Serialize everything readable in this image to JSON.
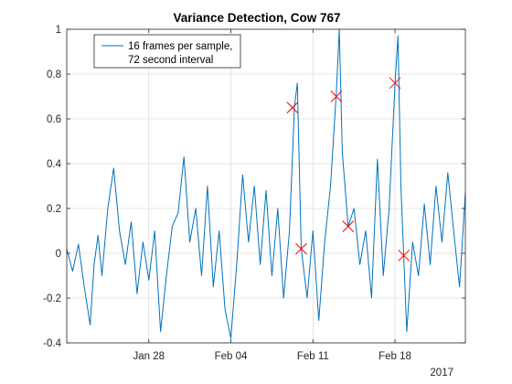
{
  "chart_data": {
    "type": "line",
    "title": "Variance Detection, Cow 767",
    "xlabel": "",
    "ylabel": "",
    "x_axis_type": "date",
    "xlim": [
      "2017-01-21",
      "2017-02-24"
    ],
    "ylim": [
      -0.4,
      1.0
    ],
    "x_ticks": [
      {
        "date": "2017-01-28",
        "label": "Jan 28"
      },
      {
        "date": "2017-02-04",
        "label": "Feb 04"
      },
      {
        "date": "2017-02-11",
        "label": "Feb 11"
      },
      {
        "date": "2017-02-18",
        "label": "Feb 18"
      }
    ],
    "x_secondary_label": "2017",
    "y_ticks": [
      -0.4,
      -0.2,
      0,
      0.2,
      0.4,
      0.6,
      0.8,
      1
    ],
    "y_tick_labels": [
      "-0.4",
      "-0.2",
      "0",
      "0.2",
      "0.4",
      "0.6",
      "0.8",
      "1"
    ],
    "grid": true,
    "legend_position": "top-left",
    "series": [
      {
        "name_lines": [
          "16 frames per sample,",
          "72  second interval"
        ],
        "color": "#0072BD",
        "points": [
          [
            "2017-01-21",
            0.02
          ],
          [
            "2017-01-21T12:00",
            -0.08
          ],
          [
            "2017-01-22",
            0.04
          ],
          [
            "2017-01-22T12:00",
            -0.15
          ],
          [
            "2017-01-23",
            -0.32
          ],
          [
            "2017-01-23T08:00",
            -0.05
          ],
          [
            "2017-01-23T16:00",
            0.08
          ],
          [
            "2017-01-24",
            -0.1
          ],
          [
            "2017-01-24T12:00",
            0.2
          ],
          [
            "2017-01-25",
            0.38
          ],
          [
            "2017-01-25T12:00",
            0.1
          ],
          [
            "2017-01-26",
            -0.05
          ],
          [
            "2017-01-26T12:00",
            0.14
          ],
          [
            "2017-01-27",
            -0.18
          ],
          [
            "2017-01-27T12:00",
            0.05
          ],
          [
            "2017-01-28",
            -0.12
          ],
          [
            "2017-01-28T12:00",
            0.1
          ],
          [
            "2017-01-29",
            -0.35
          ],
          [
            "2017-01-29T12:00",
            -0.1
          ],
          [
            "2017-01-30",
            0.12
          ],
          [
            "2017-01-30T12:00",
            0.18
          ],
          [
            "2017-01-31",
            0.43
          ],
          [
            "2017-01-31T12:00",
            0.05
          ],
          [
            "2017-02-01",
            0.2
          ],
          [
            "2017-02-01T12:00",
            -0.1
          ],
          [
            "2017-02-02",
            0.3
          ],
          [
            "2017-02-02T12:00",
            -0.15
          ],
          [
            "2017-02-03",
            0.1
          ],
          [
            "2017-02-03T12:00",
            -0.25
          ],
          [
            "2017-02-04",
            -0.38
          ],
          [
            "2017-02-04T12:00",
            -0.05
          ],
          [
            "2017-02-05",
            0.35
          ],
          [
            "2017-02-05T12:00",
            0.05
          ],
          [
            "2017-02-06",
            0.3
          ],
          [
            "2017-02-06T12:00",
            -0.05
          ],
          [
            "2017-02-07",
            0.28
          ],
          [
            "2017-02-07T12:00",
            -0.1
          ],
          [
            "2017-02-08",
            0.2
          ],
          [
            "2017-02-08T12:00",
            -0.2
          ],
          [
            "2017-02-09",
            0.1
          ],
          [
            "2017-02-09T10:00",
            0.65
          ],
          [
            "2017-02-09T16:00",
            0.76
          ],
          [
            "2017-02-10",
            0.02
          ],
          [
            "2017-02-10T12:00",
            -0.2
          ],
          [
            "2017-02-11",
            0.1
          ],
          [
            "2017-02-11T12:00",
            -0.3
          ],
          [
            "2017-02-12",
            0.05
          ],
          [
            "2017-02-12T12:00",
            0.3
          ],
          [
            "2017-02-13",
            0.72
          ],
          [
            "2017-02-13T06:00",
            1.0
          ],
          [
            "2017-02-13T12:00",
            0.45
          ],
          [
            "2017-02-14",
            0.12
          ],
          [
            "2017-02-14T12:00",
            0.2
          ],
          [
            "2017-02-15",
            -0.05
          ],
          [
            "2017-02-15T12:00",
            0.1
          ],
          [
            "2017-02-16",
            -0.2
          ],
          [
            "2017-02-16T12:00",
            0.42
          ],
          [
            "2017-02-17",
            -0.1
          ],
          [
            "2017-02-17T12:00",
            0.2
          ],
          [
            "2017-02-18",
            0.76
          ],
          [
            "2017-02-18T06:00",
            0.97
          ],
          [
            "2017-02-18T12:00",
            0.3
          ],
          [
            "2017-02-19",
            -0.35
          ],
          [
            "2017-02-19T12:00",
            0.05
          ],
          [
            "2017-02-20",
            -0.1
          ],
          [
            "2017-02-20T12:00",
            0.22
          ],
          [
            "2017-02-21",
            -0.05
          ],
          [
            "2017-02-21T12:00",
            0.3
          ],
          [
            "2017-02-22",
            0.05
          ],
          [
            "2017-02-22T12:00",
            0.36
          ],
          [
            "2017-02-23",
            0.1
          ],
          [
            "2017-02-23T12:00",
            -0.15
          ],
          [
            "2017-02-24",
            0.27
          ]
        ]
      }
    ],
    "markers": {
      "symbol": "x",
      "color": "#FF0000",
      "points": [
        [
          "2017-02-09T06:00",
          0.65
        ],
        [
          "2017-02-10",
          0.02
        ],
        [
          "2017-02-13",
          0.7
        ],
        [
          "2017-02-14",
          0.12
        ],
        [
          "2017-02-18",
          0.76
        ],
        [
          "2017-02-18T18:00",
          -0.01
        ]
      ]
    }
  }
}
